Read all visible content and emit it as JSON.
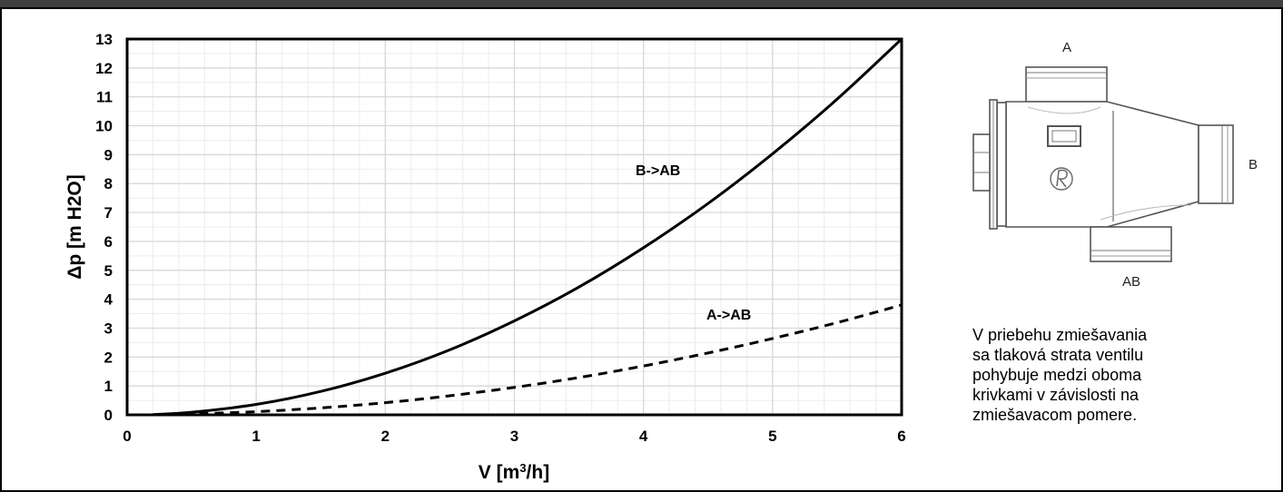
{
  "chart_data": {
    "type": "line",
    "xlabel": "V [m3/h]",
    "ylabel": "Δp [m H2O]",
    "xlim": [
      0,
      6
    ],
    "ylim": [
      0,
      13
    ],
    "x_ticks": [
      "0",
      "1",
      "2",
      "3",
      "4",
      "5",
      "6"
    ],
    "y_ticks": [
      "0",
      "1",
      "2",
      "3",
      "4",
      "5",
      "6",
      "7",
      "8",
      "9",
      "10",
      "11",
      "12",
      "13"
    ],
    "grid": true,
    "series": [
      {
        "name": "B->AB",
        "style": "solid",
        "x": [
          0.2,
          0.5,
          1,
          1.5,
          2,
          2.5,
          3,
          3.5,
          4,
          4.5,
          5,
          5.5,
          6
        ],
        "values": [
          0.01,
          0.09,
          0.36,
          0.81,
          1.44,
          2.25,
          3.25,
          4.42,
          5.78,
          7.31,
          9.03,
          10.92,
          13.0
        ]
      },
      {
        "name": "A->AB",
        "style": "dashed",
        "x": [
          0.2,
          0.5,
          1,
          1.5,
          2,
          2.5,
          3,
          3.5,
          4,
          4.5,
          5,
          5.5,
          6
        ],
        "values": [
          0.0,
          0.03,
          0.11,
          0.24,
          0.42,
          0.66,
          0.95,
          1.29,
          1.69,
          2.14,
          2.64,
          3.19,
          3.8
        ]
      }
    ]
  },
  "valve_diagram": {
    "port_a": "A",
    "port_b": "B",
    "port_ab": "AB"
  },
  "note": "V priebehu zmiešavania\nsa tlaková strata ventilu\npohybuje medzi oboma\nkrivkami v závislosti na\nzmiešavacom pomere.",
  "colors": {
    "header": "#3f3f3f",
    "line": "#000000",
    "grid": "#dcdcdc"
  }
}
